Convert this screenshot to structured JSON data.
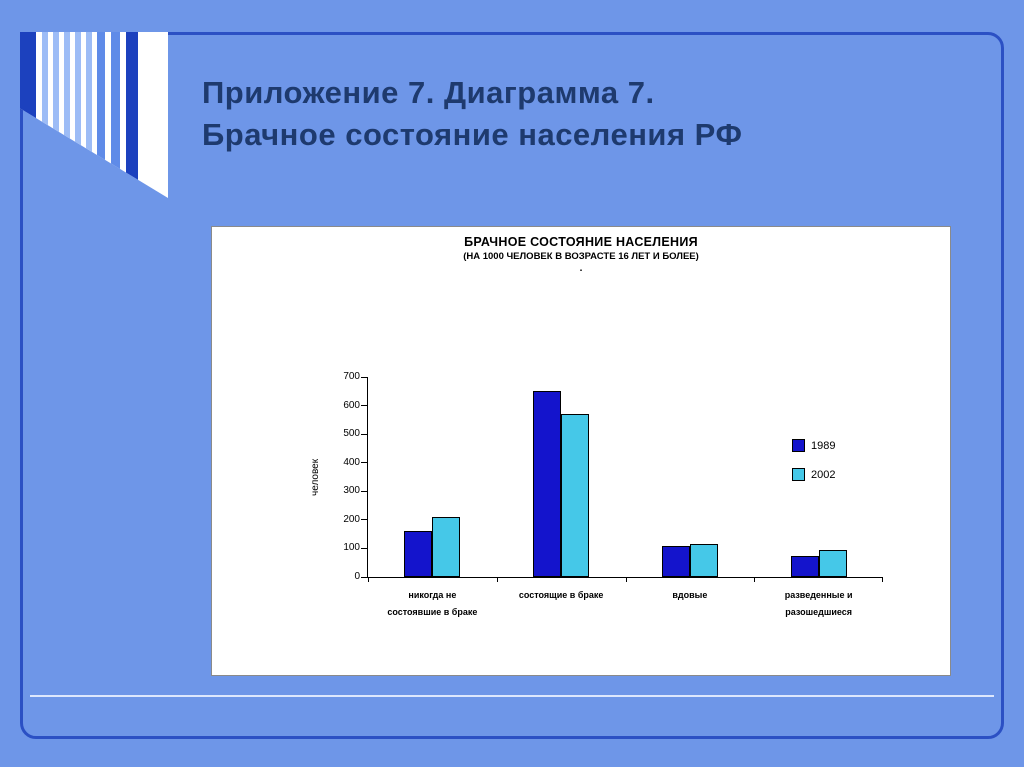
{
  "slide": {
    "title_line1": "Приложение 7. Диаграмма 7.",
    "title_line2": "Брачное состояние населения РФ"
  },
  "chart_data": {
    "type": "bar",
    "title": "БРАЧНОЕ СОСТОЯНИЕ НАСЕЛЕНИЯ",
    "subtitle": "(НА 1000 ЧЕЛОВЕК В ВОЗРАСТЕ 16 ЛЕТ И БОЛЕЕ)",
    "subtitle_dot": ".",
    "ylabel": "человек",
    "ylim": [
      0,
      700
    ],
    "yticks": [
      0,
      100,
      200,
      300,
      400,
      500,
      600,
      700
    ],
    "grid": false,
    "legend_position": "right",
    "categories": [
      "никогда не\nсостоявшие в браке",
      "состоящие в браке",
      "вдовые",
      "разведенные и\nразошедшиеся"
    ],
    "series": [
      {
        "name": "1989",
        "color": "#1414cc",
        "values": [
          160,
          650,
          110,
          75
        ]
      },
      {
        "name": "2002",
        "color": "#45c8e8",
        "values": [
          210,
          570,
          115,
          95
        ]
      }
    ]
  }
}
